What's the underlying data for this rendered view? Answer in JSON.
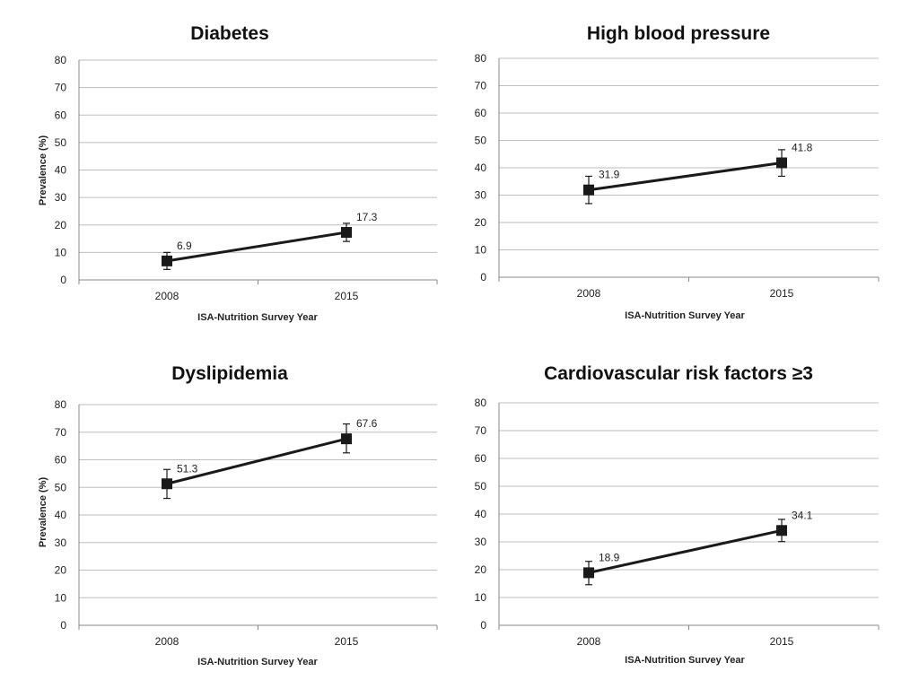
{
  "chart_data": [
    {
      "type": "line",
      "title": "Diabetes",
      "xlabel": "ISA-Nutrition Survey Year",
      "ylabel": "Prevalence (%)",
      "categories": [
        "2008",
        "2015"
      ],
      "ylim": [
        0,
        80
      ],
      "yticks": [
        "0",
        "10",
        "20",
        "30",
        "40",
        "50",
        "60",
        "70",
        "80"
      ],
      "grid": true,
      "values": [
        6.9,
        17.3
      ],
      "error": [
        [
          3.8,
          10.0
        ],
        [
          14.0,
          20.6
        ]
      ],
      "data_labels": [
        "6.9",
        "17.3"
      ]
    },
    {
      "type": "line",
      "title": "High blood pressure",
      "xlabel": "ISA-Nutrition Survey Year",
      "ylabel": "",
      "categories": [
        "2008",
        "2015"
      ],
      "ylim": [
        0,
        80
      ],
      "yticks": [
        "0",
        "10",
        "20",
        "30",
        "40",
        "50",
        "60",
        "70",
        "80"
      ],
      "grid": true,
      "values": [
        31.9,
        41.8
      ],
      "error": [
        [
          26.9,
          36.9
        ],
        [
          36.9,
          46.6
        ]
      ],
      "data_labels": [
        "31.9",
        "41.8"
      ]
    },
    {
      "type": "line",
      "title": "Dyslipidemia",
      "xlabel": "ISA-Nutrition Survey Year",
      "ylabel": "Prevalence (%)",
      "categories": [
        "2008",
        "2015"
      ],
      "ylim": [
        0,
        80
      ],
      "yticks": [
        "0",
        "10",
        "20",
        "30",
        "40",
        "50",
        "60",
        "70",
        "80"
      ],
      "grid": true,
      "values": [
        51.3,
        67.6
      ],
      "error": [
        [
          46.0,
          56.5
        ],
        [
          62.5,
          73.0
        ]
      ],
      "data_labels": [
        "51.3",
        "67.6"
      ]
    },
    {
      "type": "line",
      "title": "Cardiovascular risk factors ≥3",
      "xlabel": "ISA-Nutrition Survey Year",
      "ylabel": "",
      "categories": [
        "2008",
        "2015"
      ],
      "ylim": [
        0,
        80
      ],
      "yticks": [
        "0",
        "10",
        "20",
        "30",
        "40",
        "50",
        "60",
        "70",
        "80"
      ],
      "grid": true,
      "values": [
        18.9,
        34.1
      ],
      "error": [
        [
          14.6,
          23.0
        ],
        [
          30.1,
          38.1
        ]
      ],
      "data_labels": [
        "18.9",
        "34.1"
      ]
    }
  ],
  "colors": {
    "line": "#1a1a1a",
    "marker": "#1a1a1a",
    "grid": "#bdbdbd",
    "axis": "#888888"
  }
}
